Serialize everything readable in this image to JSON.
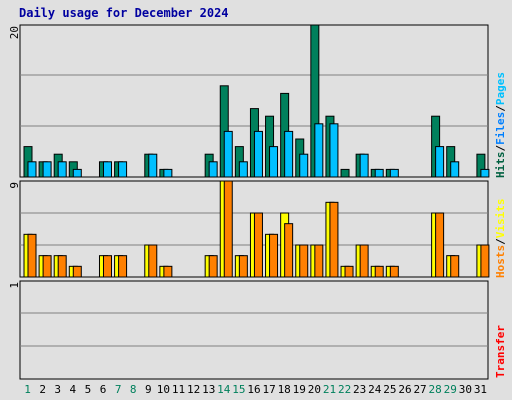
{
  "title": "Daily usage for December 2024",
  "right_labels": {
    "top": [
      "Hits",
      "/",
      "Files",
      "/",
      "Pages"
    ],
    "middle": [
      "Hosts",
      "/",
      "Visits"
    ],
    "bottom": [
      "Transfer"
    ]
  },
  "colors": {
    "background": "#e0e0e0",
    "panel": "#e0e0e0",
    "grid": "#808080",
    "hits": "#00805c",
    "files": "#0040ff",
    "pages": "#00c0ff",
    "visits": "#ffff00",
    "hosts": "#ff8000",
    "weekend": "#00805c",
    "weekday": "#0000a0"
  },
  "chart_data": [
    {
      "type": "bar",
      "title": "Daily usage for December 2024",
      "panel": "hits-files-pages",
      "ymax_label": "20",
      "ylim": [
        0,
        20
      ],
      "categories": [
        "1",
        "2",
        "3",
        "4",
        "5",
        "6",
        "7",
        "8",
        "9",
        "10",
        "11",
        "12",
        "13",
        "14",
        "15",
        "16",
        "17",
        "18",
        "19",
        "20",
        "21",
        "22",
        "23",
        "24",
        "25",
        "26",
        "27",
        "28",
        "29",
        "30",
        "31"
      ],
      "series": [
        {
          "name": "Hits",
          "values": [
            4,
            2,
            3,
            2,
            0,
            2,
            2,
            0,
            3,
            1,
            0,
            0,
            3,
            12,
            4,
            9,
            8,
            11,
            5,
            20,
            8,
            1,
            3,
            1,
            1,
            0,
            0,
            8,
            4,
            0,
            3
          ]
        },
        {
          "name": "Pages",
          "values": [
            2,
            2,
            2,
            1,
            0,
            2,
            2,
            0,
            3,
            1,
            0,
            0,
            2,
            6,
            2,
            6,
            4,
            6,
            3,
            7,
            7,
            0,
            3,
            1,
            1,
            0,
            0,
            4,
            2,
            0,
            1
          ]
        }
      ]
    },
    {
      "type": "bar",
      "panel": "hosts-visits",
      "ymax_label": "9",
      "ylim": [
        0,
        9
      ],
      "categories": [
        "1",
        "2",
        "3",
        "4",
        "5",
        "6",
        "7",
        "8",
        "9",
        "10",
        "11",
        "12",
        "13",
        "14",
        "15",
        "16",
        "17",
        "18",
        "19",
        "20",
        "21",
        "22",
        "23",
        "24",
        "25",
        "26",
        "27",
        "28",
        "29",
        "30",
        "31"
      ],
      "series": [
        {
          "name": "Visits",
          "values": [
            4,
            2,
            2,
            1,
            0,
            2,
            2,
            0,
            3,
            1,
            0,
            0,
            2,
            9,
            2,
            6,
            4,
            6,
            3,
            3,
            7,
            1,
            3,
            1,
            1,
            0,
            0,
            6,
            2,
            0,
            3
          ]
        },
        {
          "name": "Hosts",
          "values": [
            4,
            2,
            2,
            1,
            0,
            2,
            2,
            0,
            3,
            1,
            0,
            0,
            2,
            9,
            2,
            6,
            4,
            5,
            3,
            3,
            7,
            1,
            3,
            1,
            1,
            0,
            0,
            6,
            2,
            0,
            3
          ]
        }
      ]
    },
    {
      "type": "bar",
      "panel": "transfer",
      "ymax_label": "1",
      "ylim": [
        0,
        1
      ],
      "categories": [
        "1",
        "2",
        "3",
        "4",
        "5",
        "6",
        "7",
        "8",
        "9",
        "10",
        "11",
        "12",
        "13",
        "14",
        "15",
        "16",
        "17",
        "18",
        "19",
        "20",
        "21",
        "22",
        "23",
        "24",
        "25",
        "26",
        "27",
        "28",
        "29",
        "30",
        "31"
      ],
      "series": [
        {
          "name": "Transfer",
          "values": [
            0,
            0,
            0,
            0,
            0,
            0,
            0,
            0,
            0,
            0,
            0,
            0,
            0,
            0,
            0,
            0,
            0,
            0,
            0,
            0,
            0,
            0,
            0,
            0,
            0,
            0,
            0,
            0,
            0,
            0,
            0
          ]
        }
      ]
    }
  ],
  "weekend_days": [
    "1",
    "7",
    "8",
    "14",
    "15",
    "21",
    "22",
    "28",
    "29"
  ]
}
